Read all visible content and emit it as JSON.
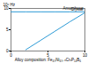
{
  "chart_data": {
    "type": "line",
    "ylabel": "10⁶ Hz",
    "xlabel": "Alloy composition: Fe₄₀Ni₄₀₋ₓCrₓP₁₄B₆",
    "x": [
      0,
      2,
      4,
      6,
      8,
      10
    ],
    "series": [
      {
        "name": "Amorphous",
        "color": "#2e9bd6",
        "values": [
          9.2,
          9.2,
          9.2,
          9.2,
          9.2,
          9.2
        ]
      },
      {
        "name": "Crystal",
        "color": "#2e9bd6",
        "values": [
          null,
          0.3,
          2.5,
          4.7,
          6.9,
          9.0
        ]
      }
    ],
    "xlim": [
      0,
      10
    ],
    "xticks": [
      0,
      5,
      10
    ],
    "ylim": [
      0,
      10
    ],
    "yticks": [
      0,
      5,
      10
    ],
    "grid": false
  }
}
